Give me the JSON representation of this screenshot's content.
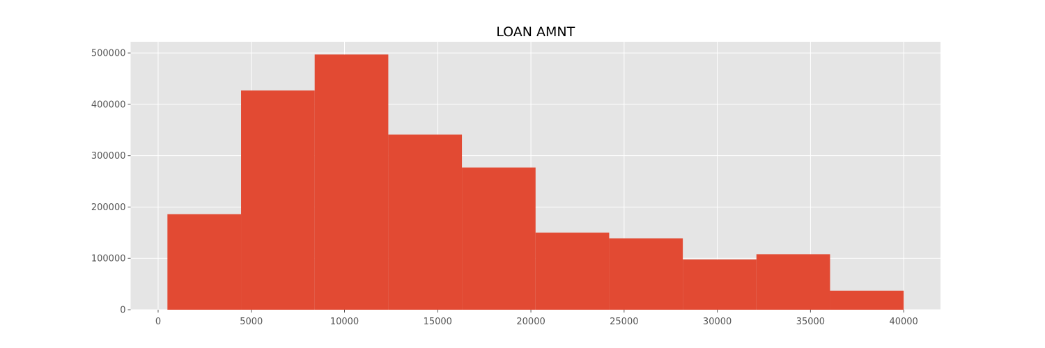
{
  "chart_data": {
    "type": "bar",
    "title": "LOAN AMNT",
    "xlabel": "",
    "ylabel": "",
    "bin_edges": [
      500,
      4450,
      8400,
      12350,
      16300,
      20250,
      24200,
      28150,
      32100,
      36050,
      40000
    ],
    "values": [
      186000,
      427000,
      497000,
      341000,
      277000,
      150000,
      139000,
      98000,
      108000,
      37000
    ],
    "xlim": [
      -1475,
      41975
    ],
    "ylim": [
      0,
      521850
    ],
    "x_ticks": [
      0,
      5000,
      10000,
      15000,
      20000,
      25000,
      30000,
      35000,
      40000
    ],
    "x_tick_labels": [
      "0",
      "5000",
      "10000",
      "15000",
      "20000",
      "25000",
      "30000",
      "35000",
      "40000"
    ],
    "y_ticks": [
      0,
      100000,
      200000,
      300000,
      400000,
      500000
    ],
    "y_tick_labels": [
      "0",
      "100000",
      "200000",
      "300000",
      "400000",
      "500000"
    ],
    "grid": true,
    "colors": {
      "bar": "#E24A33",
      "plot_background": "#E5E5E5",
      "grid": "#FFFFFF",
      "tick_label": "#555555",
      "title": "#000000"
    }
  }
}
